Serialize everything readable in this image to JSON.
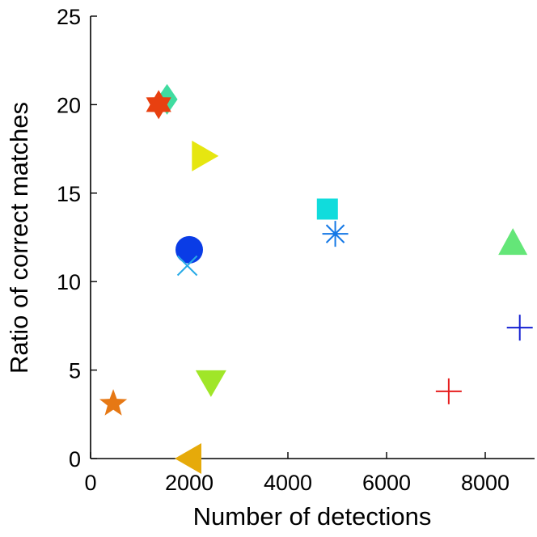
{
  "chart_data": {
    "type": "scatter",
    "title": "",
    "xlabel": "Number of detections",
    "ylabel": "Ratio of correct matches",
    "xlim": [
      0,
      9000
    ],
    "ylim": [
      0,
      25
    ],
    "x_ticks": [
      0,
      2000,
      4000,
      6000,
      8000
    ],
    "y_ticks": [
      0,
      5,
      10,
      15,
      20,
      25
    ],
    "grid": false,
    "axis_color": "#000000",
    "points": [
      {
        "name": "diamond-marker",
        "marker": "diamond",
        "color": "#40dca0",
        "x": 1550,
        "y": 20.3
      },
      {
        "name": "hexagram-marker",
        "marker": "hexagram",
        "color": "#e84010",
        "x": 1380,
        "y": 20.0
      },
      {
        "name": "triangle-right-marker",
        "marker": "triangle-right",
        "color": "#e6e610",
        "x": 2300,
        "y": 17.1
      },
      {
        "name": "square-marker",
        "marker": "square",
        "color": "#10dcdc",
        "x": 4800,
        "y": 14.1
      },
      {
        "name": "asterisk-marker",
        "marker": "asterisk",
        "color": "#1478e6",
        "x": 4960,
        "y": 12.7
      },
      {
        "name": "circle-marker",
        "marker": "circle",
        "color": "#0a3ce6",
        "x": 2000,
        "y": 11.8
      },
      {
        "name": "x-marker",
        "marker": "x",
        "color": "#28aae6",
        "x": 1960,
        "y": 10.9
      },
      {
        "name": "triangle-up-marker",
        "marker": "triangle-up",
        "color": "#64e678",
        "x": 8560,
        "y": 12.2
      },
      {
        "name": "plus-marker-blue",
        "marker": "plus",
        "color": "#1420d2",
        "x": 8700,
        "y": 7.4
      },
      {
        "name": "triangle-down-marker",
        "marker": "triangle-down",
        "color": "#a0e628",
        "x": 2440,
        "y": 4.3
      },
      {
        "name": "plus-marker-red",
        "marker": "plus",
        "color": "#e61e1e",
        "x": 7260,
        "y": 3.8
      },
      {
        "name": "pentagram-marker",
        "marker": "pentagram",
        "color": "#e67814",
        "x": 460,
        "y": 3.1
      },
      {
        "name": "triangle-left-marker",
        "marker": "triangle-left",
        "color": "#e6aa0a",
        "x": 2000,
        "y": 0.0
      }
    ]
  }
}
